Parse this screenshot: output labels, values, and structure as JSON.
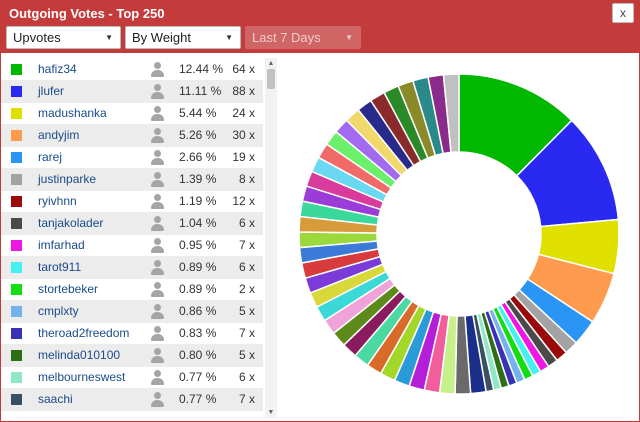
{
  "window": {
    "title": "Outgoing Votes - Top 250",
    "close_label": "x"
  },
  "filters": {
    "vote_type": "Upvotes",
    "sort_by": "By Weight",
    "period": "Last 7 Days"
  },
  "voters": [
    {
      "name": "hafiz34",
      "pct": "12.44 %",
      "count": "64 x",
      "color": "#00b800"
    },
    {
      "name": "jlufer",
      "pct": "11.11 %",
      "count": "88 x",
      "color": "#2929f2"
    },
    {
      "name": "madushanka",
      "pct": "5.44 %",
      "count": "24 x",
      "color": "#dfdf00"
    },
    {
      "name": "andyjim",
      "pct": "5.26 %",
      "count": "30 x",
      "color": "#ff9b4f"
    },
    {
      "name": "rarej",
      "pct": "2.66 %",
      "count": "19 x",
      "color": "#2b95f5"
    },
    {
      "name": "justinparke",
      "pct": "1.39 %",
      "count": "8 x",
      "color": "#a3a3a3"
    },
    {
      "name": "ryivhnn",
      "pct": "1.19 %",
      "count": "12 x",
      "color": "#9b0a0a"
    },
    {
      "name": "tanjakolader",
      "pct": "1.04 %",
      "count": "6 x",
      "color": "#4a4a4a"
    },
    {
      "name": "imfarhad",
      "pct": "0.95 %",
      "count": "7 x",
      "color": "#ee18e6"
    },
    {
      "name": "tarot911",
      "pct": "0.89 %",
      "count": "6 x",
      "color": "#46f0f0"
    },
    {
      "name": "stortebeker",
      "pct": "0.89 %",
      "count": "2 x",
      "color": "#14dd14"
    },
    {
      "name": "cmplxty",
      "pct": "0.86 %",
      "count": "5 x",
      "color": "#74b2ee"
    },
    {
      "name": "theroad2freedom",
      "pct": "0.83 %",
      "count": "7 x",
      "color": "#3a32b5"
    },
    {
      "name": "melinda010100",
      "pct": "0.80 %",
      "count": "5 x",
      "color": "#2e6e17"
    },
    {
      "name": "melbourneswest",
      "pct": "0.77 %",
      "count": "6 x",
      "color": "#8ee8c6"
    },
    {
      "name": "saachi",
      "pct": "0.77 %",
      "count": "7 x",
      "color": "#3b4f63"
    }
  ],
  "chart_data": {
    "type": "pie",
    "labels": [
      "hafiz34",
      "jlufer",
      "madushanka",
      "andyjim",
      "rarej",
      "justinparke",
      "ryivhnn",
      "tanjakolader",
      "imfarhad",
      "tarot911",
      "stortebeker",
      "cmplxty",
      "theroad2freedom",
      "melinda010100",
      "melbourneswest",
      "saachi"
    ],
    "values": [
      12.44,
      11.11,
      5.44,
      5.26,
      2.66,
      1.39,
      1.19,
      1.04,
      0.95,
      0.89,
      0.89,
      0.86,
      0.83,
      0.8,
      0.77,
      0.77
    ],
    "donut": true,
    "extra_slices_colors": [
      "#1b2f8a",
      "#6a6a6a",
      "#c8f08a",
      "#f25e9b",
      "#b41ed8",
      "#2a9ad8",
      "#a3d82a",
      "#d86a2a",
      "#4bd8a3",
      "#8a1b5e",
      "#5e8a1b",
      "#f0a3d8",
      "#3bd8d8",
      "#d8d83b",
      "#7a3bd8",
      "#d83b3b",
      "#3b7ad8",
      "#9bd83b",
      "#d89b3b",
      "#3bd89b",
      "#9b3bd8",
      "#d83b9b",
      "#6ad8f0",
      "#f06a6a",
      "#6af06a",
      "#a36af0",
      "#f0d86a",
      "#2a2a8a",
      "#8a2a2a",
      "#2a8a2a",
      "#8a8a2a",
      "#2a8a8a",
      "#8a2a8a",
      "#c0c0c0"
    ]
  }
}
